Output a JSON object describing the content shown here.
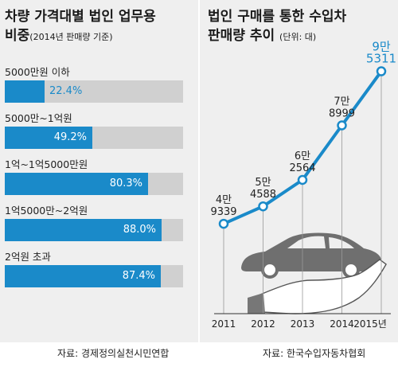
{
  "left": {
    "title_line1": "차량 가격대별 법인 업무용",
    "title_line2": "비중",
    "title_note": "(2014년 판매량 기준)",
    "source": "자료: 경제정의실천시민연합"
  },
  "right": {
    "title_line1": "법인 구매를 통한 수입차",
    "title_line2": "판매량 추이",
    "title_note": "(단위: 대)",
    "source": "자료: 한국수입자동차협회"
  },
  "chart_data": [
    {
      "type": "bar",
      "orientation": "horizontal",
      "categories": [
        "5000만원 이하",
        "5000만~1억원",
        "1억~1억5000만원",
        "1억5000만~2억원",
        "2억원 초과"
      ],
      "values": [
        22.4,
        49.2,
        80.3,
        88.0,
        87.4
      ],
      "value_labels": [
        "22.4%",
        "49.2%",
        "80.3%",
        "88.0%",
        "87.4%"
      ],
      "unit": "%",
      "xlim": [
        0,
        100
      ],
      "colors": {
        "fill": "#1a8ac9",
        "track": "#d0d0d0"
      }
    },
    {
      "type": "line",
      "x": [
        2011,
        2012,
        2013,
        2014,
        2015
      ],
      "x_labels": [
        "2011",
        "2012",
        "2013",
        "2014",
        "2015년"
      ],
      "values": [
        49339,
        54588,
        62564,
        78999,
        95311
      ],
      "label_top": [
        "4만",
        "5만",
        "6만",
        "7만",
        "9만"
      ],
      "label_bottom": [
        "9339",
        "4588",
        "2564",
        "8999",
        "5311"
      ],
      "ylim": [
        40000,
        100000
      ],
      "colors": {
        "line": "#1a8ac9",
        "highlight": "#1a8ac9",
        "label": "#222222"
      }
    }
  ]
}
